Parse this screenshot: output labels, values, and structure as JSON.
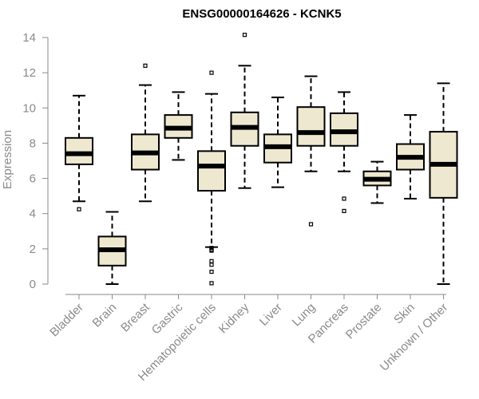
{
  "chart_data": {
    "type": "boxplot",
    "title": "ENSG00000164626 - KCNK5",
    "xlabel": "",
    "ylabel": "Expression",
    "ylim": [
      0,
      14
    ],
    "yticks": [
      0,
      2,
      4,
      6,
      8,
      10,
      12,
      14
    ],
    "box_color": "#efe8d0",
    "categories": [
      "Bladder",
      "Brain",
      "Breast",
      "Gastric",
      "Hematopoietic cells",
      "Kidney",
      "Liver",
      "Lung",
      "Pancreas",
      "Prostate",
      "Skin",
      "Unknown / Other"
    ],
    "boxes": [
      {
        "category": "Bladder",
        "whisker_low": 4.7,
        "q1": 6.8,
        "median": 7.4,
        "q3": 8.3,
        "whisker_high": 10.7,
        "outliers": [
          4.25
        ]
      },
      {
        "category": "Brain",
        "whisker_low": 0.0,
        "q1": 1.05,
        "median": 1.95,
        "q3": 2.7,
        "whisker_high": 4.1,
        "outliers": []
      },
      {
        "category": "Breast",
        "whisker_low": 4.7,
        "q1": 6.5,
        "median": 7.45,
        "q3": 8.5,
        "whisker_high": 11.3,
        "outliers": [
          12.4
        ]
      },
      {
        "category": "Gastric",
        "whisker_low": 7.05,
        "q1": 8.3,
        "median": 8.85,
        "q3": 9.6,
        "whisker_high": 10.9,
        "outliers": []
      },
      {
        "category": "Hematopoietic cells",
        "whisker_low": 2.1,
        "q1": 5.3,
        "median": 6.7,
        "q3": 7.55,
        "whisker_high": 10.8,
        "outliers": [
          12.0,
          2.05,
          1.95,
          1.9,
          1.3,
          1.1,
          0.7,
          0.05
        ]
      },
      {
        "category": "Kidney",
        "whisker_low": 5.45,
        "q1": 7.85,
        "median": 8.9,
        "q3": 9.75,
        "whisker_high": 12.4,
        "outliers": [
          14.15
        ]
      },
      {
        "category": "Liver",
        "whisker_low": 5.5,
        "q1": 6.9,
        "median": 7.8,
        "q3": 8.5,
        "whisker_high": 10.6,
        "outliers": []
      },
      {
        "category": "Lung",
        "whisker_low": 6.4,
        "q1": 7.85,
        "median": 8.6,
        "q3": 10.05,
        "whisker_high": 11.8,
        "outliers": [
          3.4
        ]
      },
      {
        "category": "Pancreas",
        "whisker_low": 6.4,
        "q1": 7.85,
        "median": 8.65,
        "q3": 9.7,
        "whisker_high": 10.9,
        "outliers": [
          4.85,
          4.15
        ]
      },
      {
        "category": "Prostate",
        "whisker_low": 4.6,
        "q1": 5.6,
        "median": 5.95,
        "q3": 6.4,
        "whisker_high": 6.95,
        "outliers": []
      },
      {
        "category": "Skin",
        "whisker_low": 4.85,
        "q1": 6.5,
        "median": 7.2,
        "q3": 7.95,
        "whisker_high": 9.6,
        "outliers": []
      },
      {
        "category": "Unknown / Other",
        "whisker_low": 0.0,
        "q1": 4.9,
        "median": 6.8,
        "q3": 8.65,
        "whisker_high": 11.4,
        "outliers": []
      }
    ]
  }
}
